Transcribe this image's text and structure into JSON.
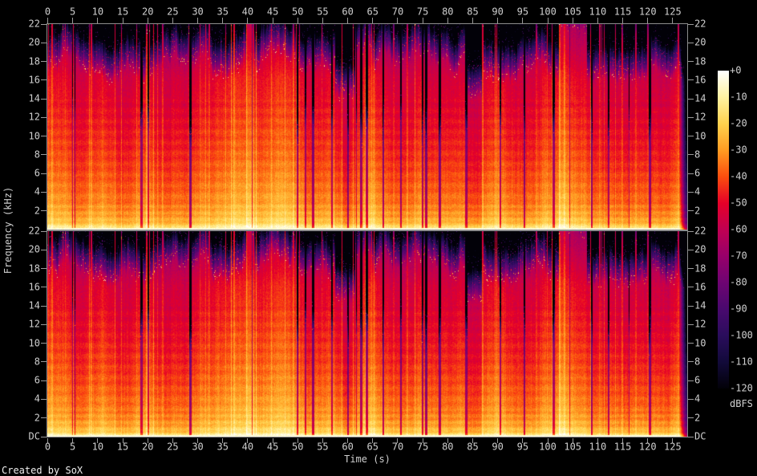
{
  "credit": "Created by SoX",
  "chart_data": {
    "type": "heatmap",
    "subtype": "audio-spectrogram",
    "title": "",
    "xlabel": "Time (s)",
    "ylabel": "Frequency (kHz)",
    "panel_count": 2,
    "x_axis": {
      "range_s": [
        0,
        127.9
      ],
      "tick_step_s": 5,
      "ticks": [
        0,
        5,
        10,
        15,
        20,
        25,
        30,
        35,
        40,
        45,
        50,
        55,
        60,
        65,
        70,
        75,
        80,
        85,
        90,
        95,
        100,
        105,
        110,
        115,
        120,
        125
      ],
      "labels_top": true,
      "labels_bottom": true
    },
    "y_axis": {
      "range_khz_per_panel": [
        0,
        22
      ],
      "tick_values_khz": [
        22,
        20,
        18,
        16,
        14,
        12,
        10,
        8,
        6,
        4,
        2
      ],
      "tick_labels": [
        "22",
        "20",
        "18",
        "16",
        "14",
        "12",
        "10",
        "8",
        "6",
        "4",
        "2"
      ],
      "dc_label": "DC",
      "labels_left": true,
      "labels_right": true
    },
    "colorbar": {
      "label": "dBFS",
      "tick_labels": [
        "+0",
        "-10",
        "-20",
        "-30",
        "-40",
        "-50",
        "-60",
        "-70",
        "-80",
        "-90",
        "-100",
        "-110",
        "-120"
      ],
      "stops_db": [
        0,
        -10,
        -20,
        -30,
        -40,
        -50,
        -60,
        -70,
        -80,
        -90,
        -100,
        -110,
        -120
      ],
      "stop_colors": [
        "#ffffff",
        "#fff2a2",
        "#ffd24e",
        "#ff9c22",
        "#fb4e0e",
        "#e60028",
        "#c00052",
        "#98006a",
        "#6e0472",
        "#49096e",
        "#2a0d5c",
        "#120a3a",
        "#020108"
      ]
    },
    "observed_features": {
      "audio_end_s": 126.35,
      "codec_cutoff_khz": 16.3,
      "dc_line": "bright near-white line at the bottom (DC) of each panel",
      "silence_gaps_s": [
        18.6,
        28.4,
        49.8,
        53.0,
        56.7,
        60.0,
        62.5,
        63.7,
        67.0,
        70.5,
        74.9,
        75.5,
        78.2,
        83.5,
        90.4,
        95.2,
        101.0,
        108.7,
        112.1,
        120.3
      ],
      "loud_segments_s": [
        [
          39.7,
          41.2
        ],
        [
          102.4,
          107.8
        ]
      ],
      "quiet_segments_s": [
        [
          57.5,
          61.5
        ],
        [
          83.8,
          86.8
        ]
      ],
      "end_fade": "spectrum fades through purple/blue to black after audio ends"
    },
    "render": {
      "seeds": [
        20231107,
        77115533
      ],
      "channel_cut_bias_khz": [
        0.0,
        0.35
      ],
      "axis_text_color": "#cfcfcf",
      "tick_color": "#9a9a9a",
      "panel_border_color": "#8d8d8d",
      "background_color": "#000000"
    }
  }
}
